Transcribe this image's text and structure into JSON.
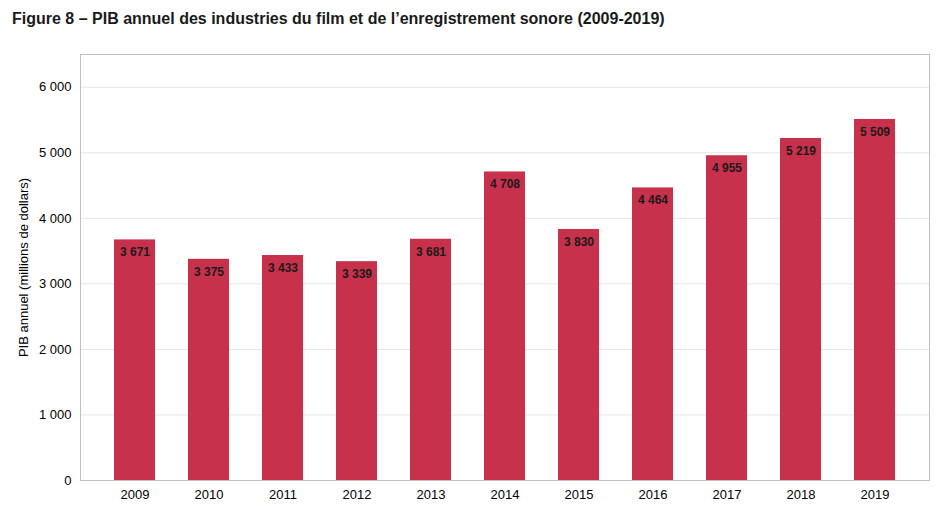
{
  "chart_data": {
    "type": "bar",
    "title": "Figure 8 – PIB annuel des industries du film et de l’enregistrement sonore (2009-2019)",
    "ylabel": "PIB annuel (millions de dollars)",
    "categories": [
      "2009",
      "2010",
      "2011",
      "2012",
      "2013",
      "2014",
      "2015",
      "2016",
      "2017",
      "2018",
      "2019"
    ],
    "values": [
      3671,
      3375,
      3433,
      3339,
      3681,
      4708,
      3830,
      4464,
      4955,
      5219,
      5509
    ],
    "value_labels": [
      "3 671",
      "3 375",
      "3 433",
      "3 339",
      "3 681",
      "4 708",
      "3 830",
      "4 464",
      "4 955",
      "5 219",
      "5 509"
    ],
    "color": "#C8314B",
    "ylim": [
      0,
      6500
    ],
    "yticks": [
      0,
      {
        "value": 1000,
        "label": "1 000"
      },
      {
        "value": 2000,
        "label": "2 000"
      },
      {
        "value": 3000,
        "label": "3 000"
      },
      {
        "value": 4000,
        "label": "4 000"
      },
      {
        "value": 5000,
        "label": "5 000"
      },
      {
        "value": 6000,
        "label": "6 000"
      }
    ],
    "grid": true,
    "data_labels": true
  }
}
